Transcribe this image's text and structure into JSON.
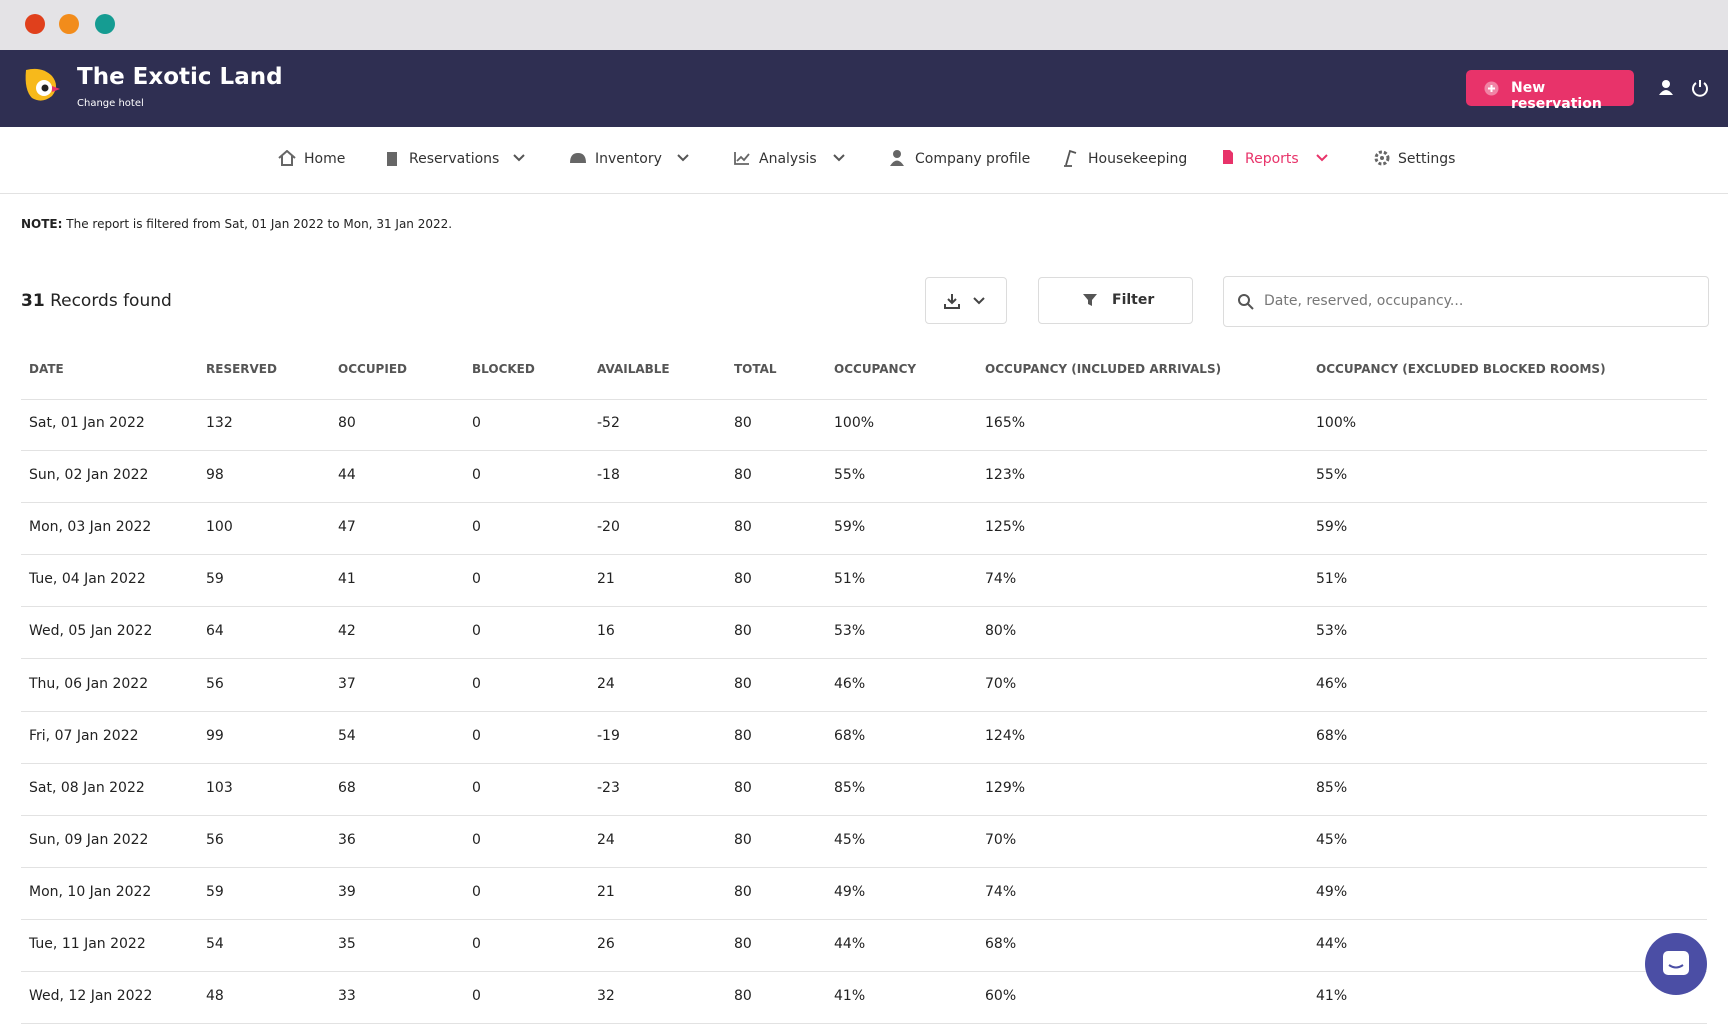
{
  "header": {
    "title": "The Exotic Land",
    "subtitle": "Change hotel",
    "button": "New reservation"
  },
  "nav": [
    "Home",
    "Reservations",
    "Inventory",
    "Analysis",
    "Company profile",
    "Housekeeping",
    "Reports",
    "Settings"
  ],
  "note": {
    "label": "NOTE:",
    "text": "The report is filtered from Sat, 01 Jan 2022 to Mon, 31 Jan 2022."
  },
  "records": {
    "count": "31",
    "label": "Records found"
  },
  "filter": "Filter",
  "search_placeholder": "Date, reserved, occupancy...",
  "table": {
    "columns": [
      "DATE",
      "RESERVED",
      "OCCUPIED",
      "BLOCKED",
      "AVAILABLE",
      "TOTAL",
      "OCCUPANCY",
      "OCCUPANCY (INCLUDED ARRIVALS)",
      "OCCUPANCY (EXCLUDED BLOCKED ROOMS)"
    ],
    "rows": [
      [
        "Sat, 01 Jan 2022",
        "132",
        "80",
        "0",
        "-52",
        "80",
        "100%",
        "165%",
        "100%"
      ],
      [
        "Sun, 02 Jan 2022",
        "98",
        "44",
        "0",
        "-18",
        "80",
        "55%",
        "123%",
        "55%"
      ],
      [
        "Mon, 03 Jan 2022",
        "100",
        "47",
        "0",
        "-20",
        "80",
        "59%",
        "125%",
        "59%"
      ],
      [
        "Tue, 04 Jan 2022",
        "59",
        "41",
        "0",
        "21",
        "80",
        "51%",
        "74%",
        "51%"
      ],
      [
        "Wed, 05 Jan 2022",
        "64",
        "42",
        "0",
        "16",
        "80",
        "53%",
        "80%",
        "53%"
      ],
      [
        "Thu, 06 Jan 2022",
        "56",
        "37",
        "0",
        "24",
        "80",
        "46%",
        "70%",
        "46%"
      ],
      [
        "Fri, 07 Jan 2022",
        "99",
        "54",
        "0",
        "-19",
        "80",
        "68%",
        "124%",
        "68%"
      ],
      [
        "Sat, 08 Jan 2022",
        "103",
        "68",
        "0",
        "-23",
        "80",
        "85%",
        "129%",
        "85%"
      ],
      [
        "Sun, 09 Jan 2022",
        "56",
        "36",
        "0",
        "24",
        "80",
        "45%",
        "70%",
        "45%"
      ],
      [
        "Mon, 10 Jan 2022",
        "59",
        "39",
        "0",
        "21",
        "80",
        "49%",
        "74%",
        "49%"
      ],
      [
        "Tue, 11 Jan 2022",
        "54",
        "35",
        "0",
        "26",
        "80",
        "44%",
        "68%",
        "44%"
      ],
      [
        "Wed, 12 Jan 2022",
        "48",
        "33",
        "0",
        "32",
        "80",
        "41%",
        "60%",
        "41%"
      ]
    ]
  }
}
